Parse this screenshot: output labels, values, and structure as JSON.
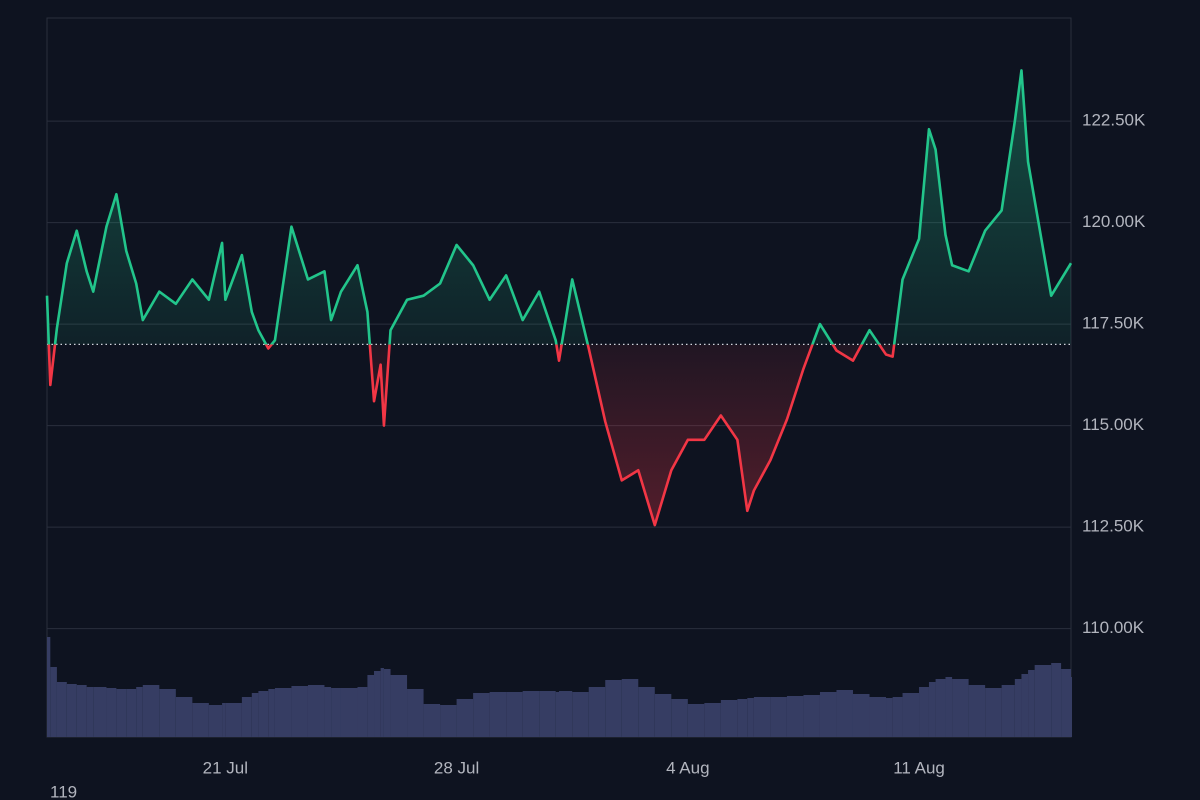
{
  "chart_data": {
    "type": "baseline",
    "x": [
      15.6,
      15.7,
      15.9,
      16.2,
      16.5,
      16.8,
      17.0,
      17.4,
      17.7,
      18.0,
      18.3,
      18.5,
      19.0,
      19.5,
      20.0,
      20.5,
      20.9,
      21.0,
      21.5,
      21.8,
      22.0,
      22.3,
      22.5,
      23.0,
      23.5,
      24.0,
      24.2,
      24.5,
      25.0,
      25.3,
      25.5,
      25.7,
      25.8,
      26.0,
      26.5,
      27.0,
      27.5,
      28.0,
      28.5,
      29.0,
      29.5,
      30.0,
      30.5,
      31.0,
      31.1,
      31.5,
      32.0,
      32.5,
      33.0,
      33.5,
      34.0,
      34.5,
      35.0,
      35.5,
      36.0,
      36.5,
      36.8,
      37.0,
      37.5,
      38.0,
      38.5,
      39.0,
      39.5,
      40.0,
      40.5,
      41.0,
      41.2,
      41.5,
      42.0,
      42.3,
      42.5,
      42.8,
      43.0,
      43.5,
      44.0,
      44.5,
      44.9,
      45.1,
      45.3,
      45.5,
      46.0,
      46.3,
      46.6
    ],
    "values": [
      118200,
      116000,
      117400,
      119000,
      119800,
      118800,
      118300,
      119900,
      120700,
      119300,
      118500,
      117600,
      118300,
      118000,
      118600,
      118100,
      119500,
      118100,
      119200,
      117800,
      117350,
      116900,
      117100,
      119900,
      118600,
      118800,
      117600,
      118300,
      118950,
      117800,
      115600,
      116500,
      115000,
      117350,
      118100,
      118200,
      118500,
      119450,
      118950,
      118100,
      118700,
      117600,
      118300,
      117100,
      116600,
      118600,
      116900,
      115100,
      113650,
      113900,
      112550,
      113900,
      114650,
      114650,
      115250,
      114650,
      112900,
      113400,
      114150,
      115150,
      116400,
      117500,
      116850,
      116600,
      117350,
      116750,
      116700,
      118600,
      119600,
      122300,
      121800,
      119700,
      118950,
      118800,
      119800,
      120300,
      122500,
      123750,
      121500,
      120550,
      118200,
      118600,
      119000
    ],
    "volume": [
      100,
      70,
      55,
      53,
      52,
      50,
      50,
      49,
      48,
      48,
      50,
      52,
      48,
      40,
      34,
      32,
      34,
      34,
      40,
      44,
      46,
      48,
      49,
      51,
      52,
      50,
      49,
      49,
      50,
      62,
      66,
      69,
      68,
      62,
      48,
      33,
      32,
      38,
      44,
      45,
      45,
      46,
      46,
      45,
      46,
      45,
      50,
      57,
      58,
      50,
      43,
      38,
      33,
      34,
      37,
      38,
      39,
      40,
      40,
      41,
      42,
      45,
      47,
      43,
      40,
      39,
      40,
      44,
      50,
      55,
      58,
      60,
      58,
      52,
      49,
      52,
      58,
      63,
      67,
      72,
      74,
      68,
      60
    ],
    "volume_lim": [
      0,
      100
    ],
    "volume_color": "#363d63",
    "baseline": 117000,
    "up_color": "#22c58b",
    "down_color": "#f23645",
    "xlim": [
      15.6,
      46.6
    ],
    "xticks": [
      {
        "value": 21,
        "label": "21 Jul"
      },
      {
        "value": 28,
        "label": "28 Jul"
      },
      {
        "value": 35,
        "label": "4 Aug"
      },
      {
        "value": 42,
        "label": "11 Aug"
      }
    ],
    "ylim": [
      107330,
      125040
    ],
    "yticks": [
      {
        "value": 110000,
        "label": "110.00K"
      },
      {
        "value": 112500,
        "label": "112.50K"
      },
      {
        "value": 115000,
        "label": "115.00K"
      },
      {
        "value": 117500,
        "label": "117.50K"
      },
      {
        "value": 120000,
        "label": "120.00K"
      },
      {
        "value": 122500,
        "label": "122.50K"
      }
    ],
    "grid": true,
    "corner_label": "119"
  }
}
